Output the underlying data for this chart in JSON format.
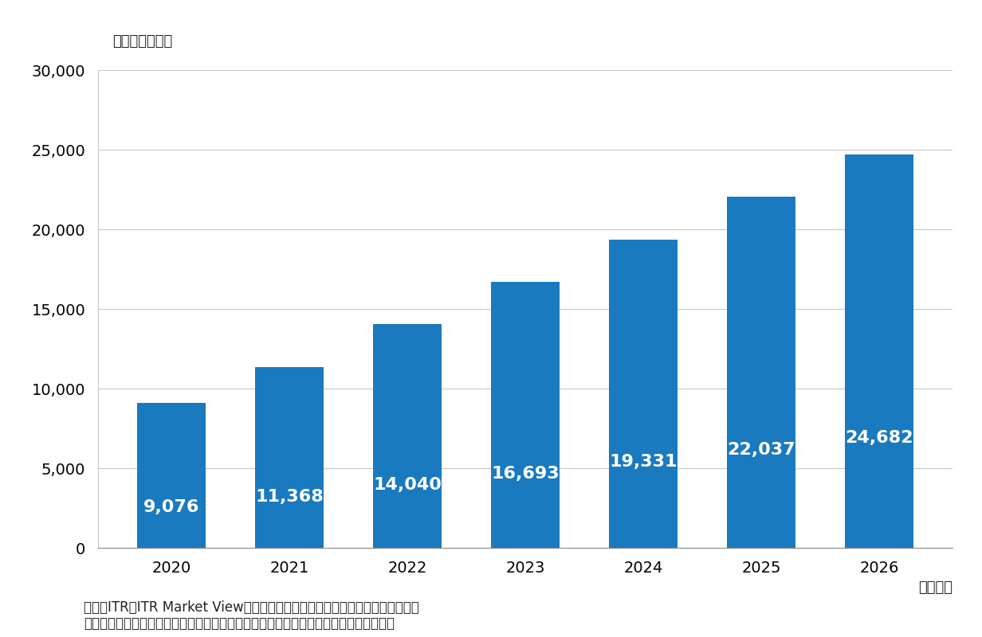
{
  "categories": [
    "2020",
    "2021",
    "2022",
    "2023",
    "2024",
    "2025",
    "2026"
  ],
  "values": [
    9076,
    11368,
    14040,
    16693,
    19331,
    22037,
    24682
  ],
  "bar_color": "#1a7abf",
  "ylim": [
    0,
    30000
  ],
  "yticks": [
    0,
    5000,
    10000,
    15000,
    20000,
    25000,
    30000
  ],
  "unit_label": "（単位：億円）",
  "xlabel": "（年度）",
  "footnote_line1": "出典：ITR『ITR Market View：クラウド・コンピューティング市場２０２３』",
  "footnote_line2": "＊ベンダーの売上金額を対象とし，３月期ベースで換算。２０２２年度以降は予測値。",
  "label_color": "#ffffff",
  "label_fontsize": 16,
  "tick_fontsize": 14,
  "unit_fontsize": 13,
  "footnote_fontsize": 12,
  "xlabel_fontsize": 13,
  "background_color": "#ffffff",
  "grid_color": "#c8c8c8"
}
